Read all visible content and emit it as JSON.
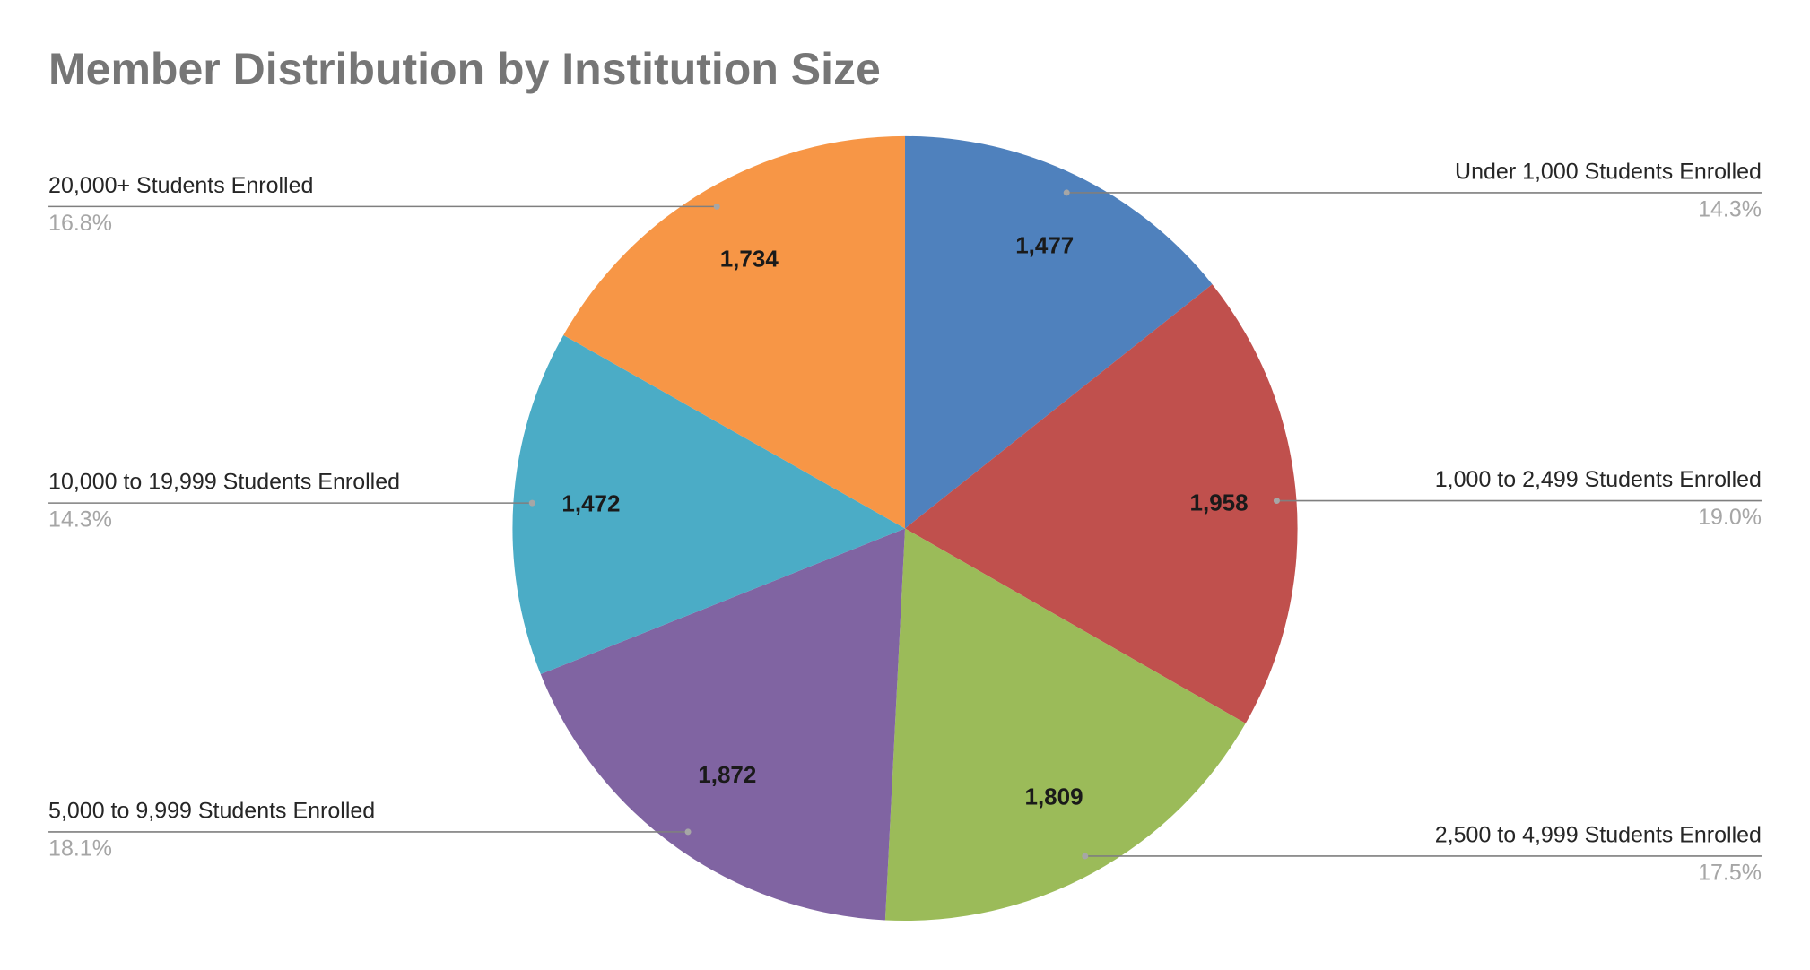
{
  "chart_data": {
    "type": "pie",
    "title": "Member Distribution by Institution Size",
    "categories": [
      "Under 1,000 Students Enrolled",
      "1,000 to 2,499 Students Enrolled",
      "2,500 to 4,999 Students Enrolled",
      "5,000 to 9,999 Students Enrolled",
      "10,000 to 19,999 Students Enrolled",
      "20,000+ Students Enrolled"
    ],
    "values": [
      1477,
      1958,
      1809,
      1872,
      1472,
      1734
    ],
    "value_labels": [
      "1,477",
      "1,958",
      "1,809",
      "1,872",
      "1,472",
      "1,734"
    ],
    "percents": [
      14.3,
      19.0,
      17.5,
      18.1,
      14.3,
      16.8
    ],
    "percent_labels": [
      "14.3%",
      "19.0%",
      "17.5%",
      "18.1%",
      "14.3%",
      "16.8%"
    ],
    "colors": [
      "#4f81bd",
      "#c0504d",
      "#9bbb59",
      "#8064a2",
      "#4bacc6",
      "#f79646"
    ]
  }
}
